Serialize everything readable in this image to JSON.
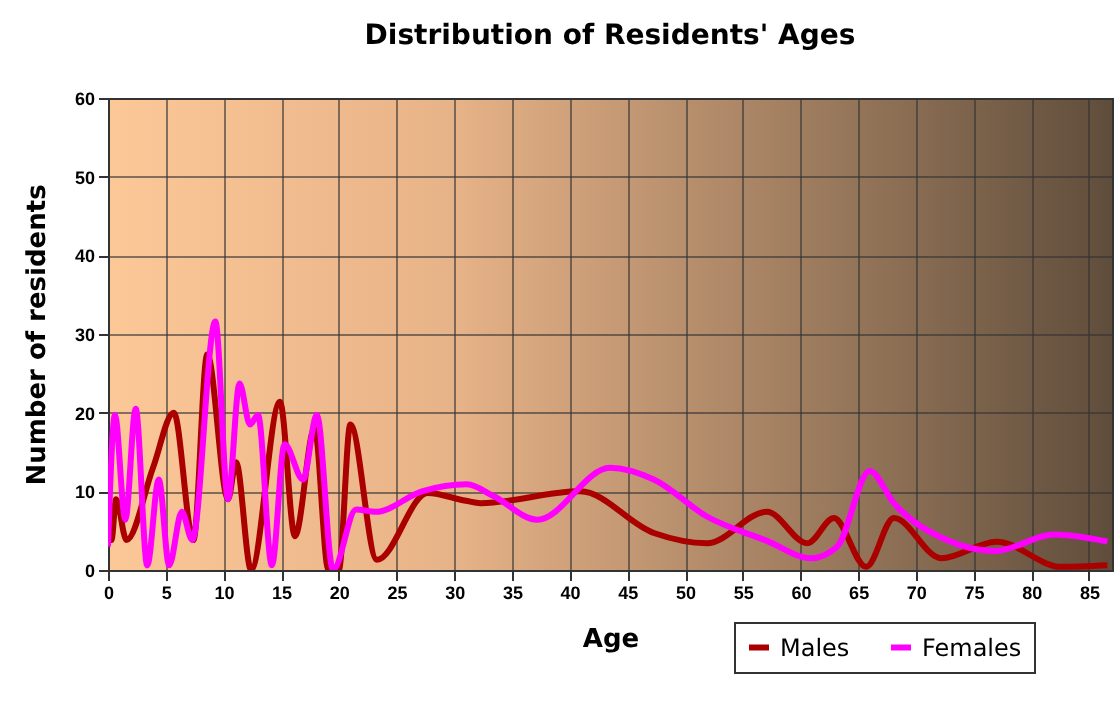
{
  "chart_data": {
    "type": "line",
    "title": "Distribution of Residents' Ages",
    "xlabel": "Age",
    "ylabel": "Number of residents",
    "xlim": [
      0,
      87
    ],
    "xticks": [
      0,
      5,
      10,
      15,
      20,
      25,
      30,
      35,
      40,
      45,
      50,
      55,
      60,
      65,
      70,
      75,
      80,
      85
    ],
    "ylim": [
      0,
      60
    ],
    "yticks": [
      0,
      10,
      20,
      30,
      40,
      50,
      60
    ],
    "grid": true,
    "legend": "bottom right",
    "line_style": "solid",
    "marker": "none",
    "series": [
      {
        "name": "Males",
        "color": "#aa0000",
        "x": [
          0,
          0.3,
          0.7,
          1.6,
          3.9,
          5.7,
          7.4,
          8.6,
          10.4,
          11.1,
          12.4,
          14.9,
          16.2,
          17.9,
          19.1,
          20,
          21,
          23.3,
          27.7,
          31,
          32.3,
          40.9,
          47.3,
          51.9,
          57.1,
          60.6,
          62.9,
          65.7,
          68.1,
          72.2,
          77,
          82.6,
          86.6
        ],
        "values": [
          10.7,
          3.8,
          9,
          3.8,
          13,
          20,
          3.8,
          27.4,
          9,
          13.7,
          0,
          21.4,
          4.3,
          18,
          0,
          0,
          18.5,
          1.3,
          9.8,
          8.8,
          8.5,
          10,
          4.7,
          3.4,
          7.4,
          3.4,
          6.6,
          0.4,
          6.6,
          1.5,
          3.6,
          0.4,
          0.6
        ]
      },
      {
        "name": "Females",
        "color": "#ff00ff",
        "x": [
          0,
          0.6,
          1.5,
          2.4,
          3.4,
          4.4,
          5.3,
          6.4,
          7.3,
          9.3,
          10.4,
          11.4,
          12.3,
          13,
          14.2,
          15.3,
          16.9,
          18.1,
          19.5,
          21.5,
          23.2,
          27.2,
          31.1,
          33.4,
          37.2,
          43.5,
          47.3,
          51.9,
          57.1,
          60.9,
          63.2,
          66,
          68.1,
          72.7,
          76.8,
          82,
          86.6
        ],
        "values": [
          3,
          19.7,
          6.4,
          20.5,
          0.6,
          11.5,
          0.6,
          7.4,
          3.8,
          31.6,
          9,
          23.7,
          18.5,
          19.7,
          0.6,
          16,
          11.5,
          19.7,
          0,
          7.7,
          7.4,
          10,
          10.9,
          9.4,
          6.4,
          13,
          11.5,
          6.8,
          3.7,
          1.5,
          3,
          12.6,
          8.5,
          3.8,
          2.4,
          4.5,
          3.6
        ]
      }
    ]
  }
}
